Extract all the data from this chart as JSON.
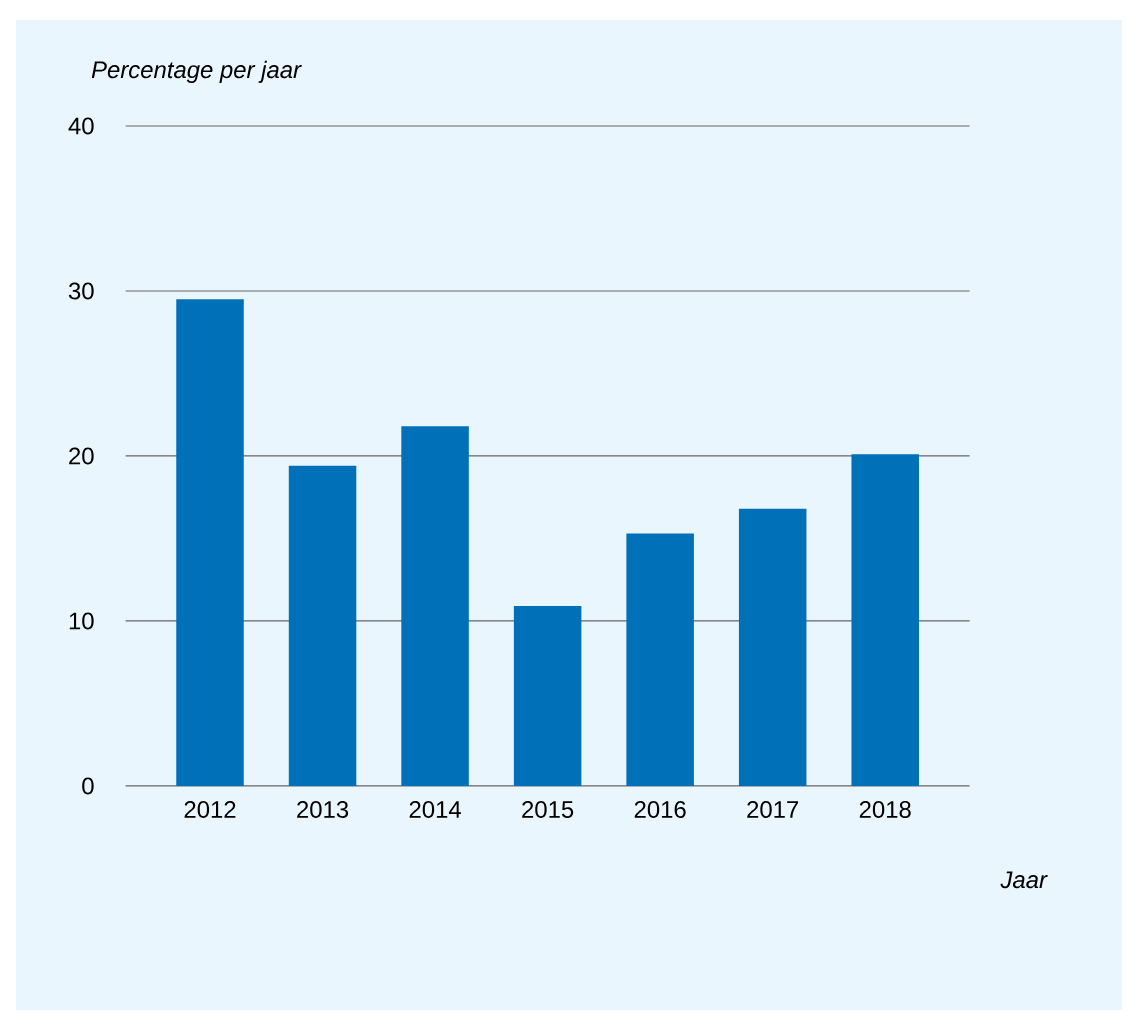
{
  "chart_data": {
    "type": "bar",
    "xlabel": "Jaar",
    "ylabel": "Percentage per jaar",
    "categories": [
      "2012",
      "2013",
      "2014",
      "2015",
      "2016",
      "2017",
      "2018"
    ],
    "values": [
      29.5,
      19.4,
      21.8,
      10.9,
      15.3,
      16.8,
      20.1
    ],
    "color": "#0070b8",
    "ylim": [
      0,
      40
    ],
    "yticks": [
      0,
      10,
      20,
      30,
      40
    ],
    "grid": "y"
  }
}
